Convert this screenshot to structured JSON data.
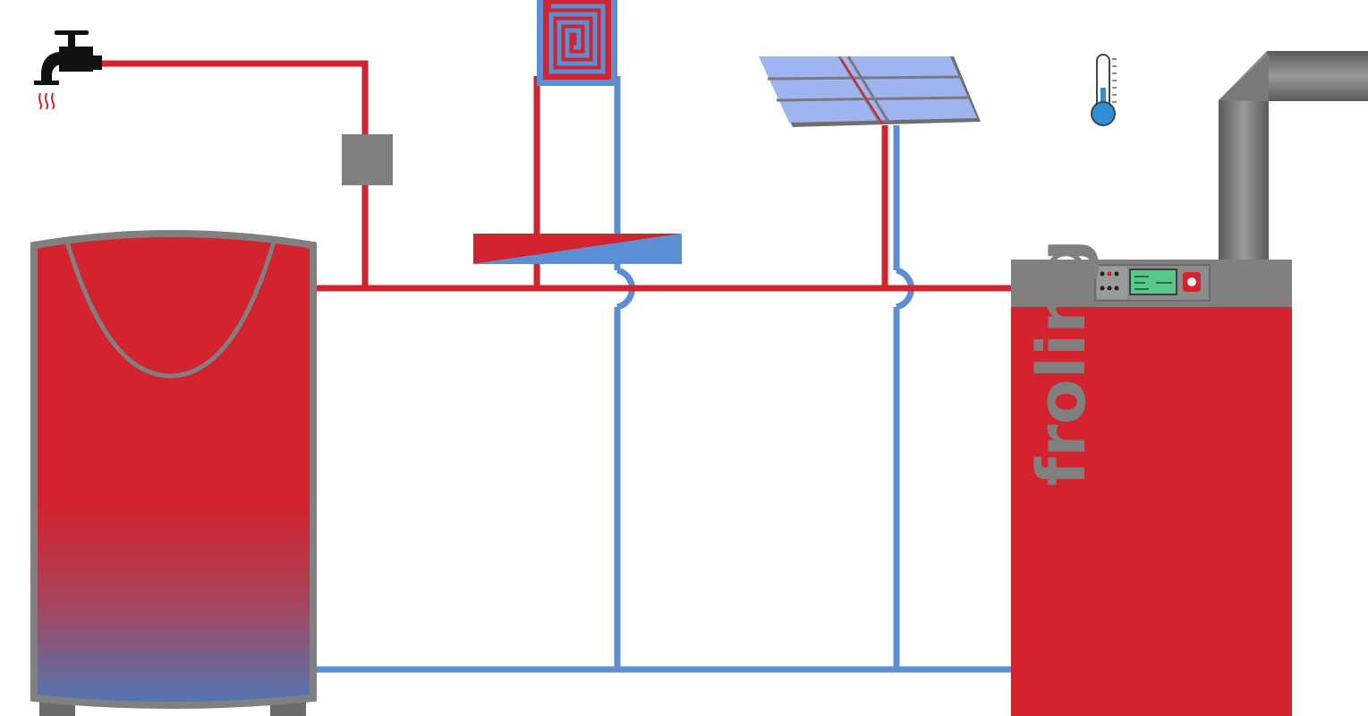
{
  "boiler": {
    "brand": "froling"
  },
  "colors": {
    "hot": "#d2232f",
    "cold": "#5b8fd4",
    "casing": "#808080",
    "panel": "#8c8c8c",
    "display": "#56c98a",
    "solar": "#9fb4f0"
  },
  "icons": {
    "tap": "water-tap-icon",
    "thermometer": "thermometer-icon",
    "heating_coil": "heating-coil-icon",
    "solar": "solar-panel-icon",
    "chimney": "chimney-flue-icon"
  }
}
